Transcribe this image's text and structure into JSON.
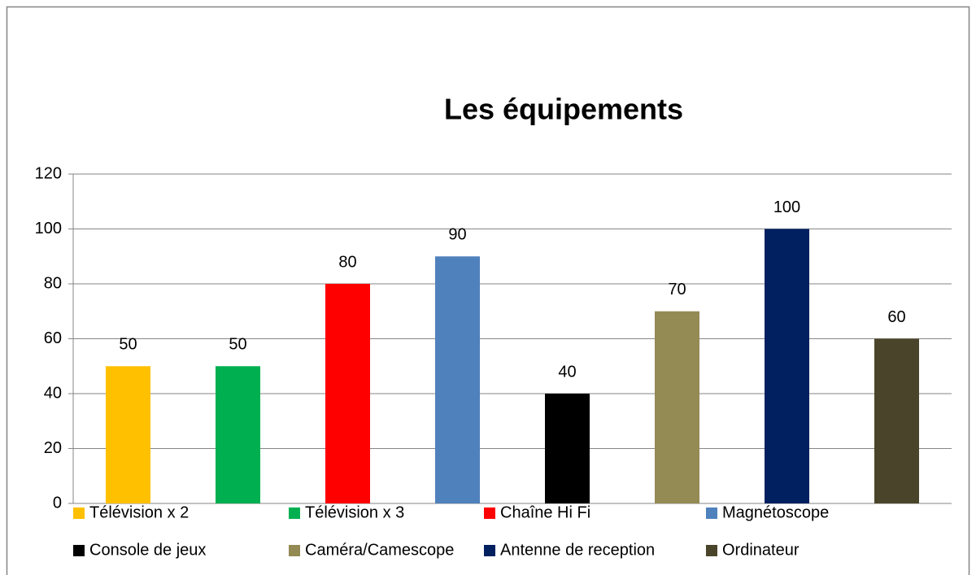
{
  "chart_data": {
    "type": "bar",
    "title": "Les équipements",
    "categories": [
      "Télévision x 2",
      "Télévision x 3",
      "Chaîne Hi Fi",
      "Magnétoscope",
      "Console de jeux",
      "Caméra/Camescope",
      "Antenne de reception",
      "Ordinateur"
    ],
    "values": [
      50,
      50,
      80,
      90,
      40,
      70,
      100,
      60
    ],
    "colors": [
      "#FFC000",
      "#00B050",
      "#FF0000",
      "#4F81BD",
      "#000000",
      "#948A54",
      "#002060",
      "#4A452A"
    ],
    "ylim": [
      0,
      120
    ],
    "yticks": [
      0,
      20,
      40,
      60,
      80,
      100,
      120
    ],
    "grid": true,
    "legend": "bottom"
  }
}
